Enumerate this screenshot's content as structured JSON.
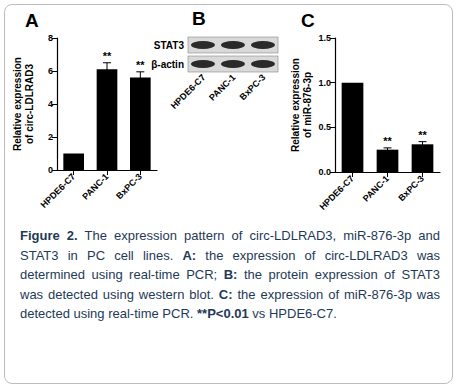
{
  "chart_data": [
    {
      "type": "bar",
      "title": "A",
      "categories": [
        "HPDE6-C7",
        "PANC-1",
        "BxPC-3"
      ],
      "values": [
        1,
        6.1,
        5.6
      ],
      "errors": [
        0,
        0.4,
        0.35
      ],
      "annotations": [
        null,
        "**",
        "**"
      ],
      "y_label": "Relative expression\nof circ-LDLRAD3",
      "color": "#000000",
      "ylim": [
        0,
        8
      ],
      "yticks": [
        0,
        2,
        4,
        6,
        8
      ],
      "grid": false
    },
    {
      "type": "bar",
      "title": "C",
      "categories": [
        "HPDE6-C7",
        "PANC-1",
        "BxPC-3"
      ],
      "values": [
        1,
        0.25,
        0.31
      ],
      "errors": [
        0,
        0.02,
        0.03
      ],
      "annotations": [
        null,
        "**",
        "**"
      ],
      "y_label": "Relative expression\nof miR-876-3p",
      "color": "#000000",
      "ylim": [
        0,
        1.5
      ],
      "yticks": [
        {
          "value": 0,
          "label": "0.0"
        },
        {
          "value": 0.5,
          "label": "0.5"
        },
        {
          "value": 1,
          "label": "1.0"
        },
        {
          "value": 1.5,
          "label": "1.5"
        }
      ],
      "grid": false
    }
  ],
  "blot": {
    "title": "B",
    "rows": [
      "STAT3",
      "β-actin"
    ],
    "lanes": [
      "HPDE6-C7",
      "PANC-1",
      "BxPC-3"
    ]
  },
  "caption": [
    {
      "text": "Figure 2.",
      "bold": true
    },
    {
      "text": " The expression pattern of circ-LDLRAD3, miR-876-3p and STAT3 in PC cell lines. "
    },
    {
      "text": "A:",
      "bold": true
    },
    {
      "text": " the expression of circ-LDLRAD3 was determined using real-time PCR; "
    },
    {
      "text": "B:",
      "bold": true
    },
    {
      "text": " the protein expression of STAT3 was detected using western blot. "
    },
    {
      "text": "C:",
      "bold": true
    },
    {
      "text": " the expression of miR-876-3p was detected using real-time PCR. "
    },
    {
      "text": "**P<0.01",
      "bold": true
    },
    {
      "text": " vs HPDE6-C7."
    }
  ]
}
